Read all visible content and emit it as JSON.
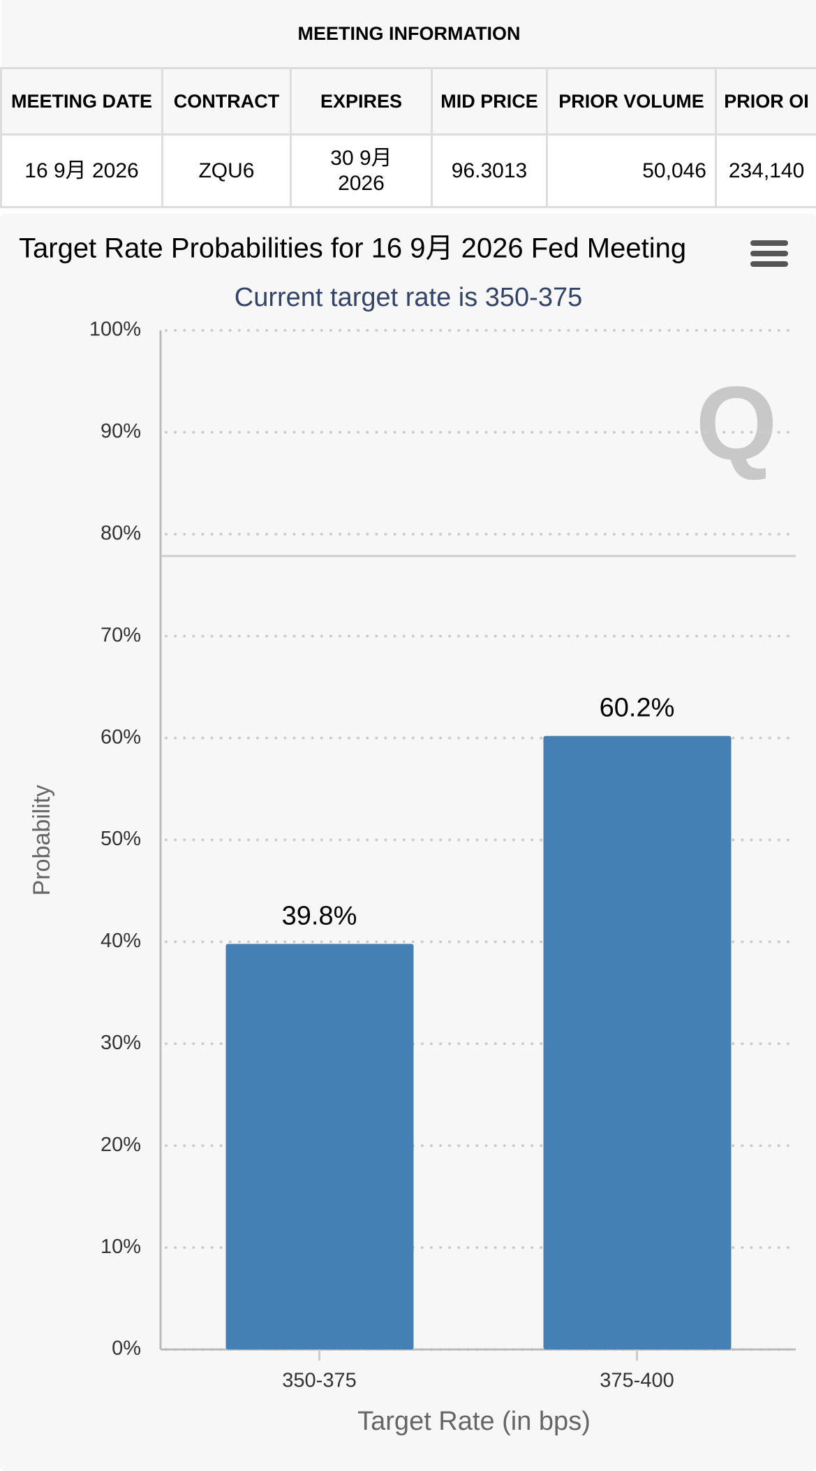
{
  "table": {
    "title": "MEETING INFORMATION",
    "headers": [
      "MEETING DATE",
      "CONTRACT",
      "EXPIRES",
      "MID PRICE",
      "PRIOR VOLUME",
      "PRIOR OI"
    ],
    "rows": [
      [
        "16 9月 2026",
        "ZQU6",
        "30 9月 2026",
        "96.3013",
        "50,046",
        "234,140"
      ]
    ]
  },
  "chart_data": {
    "type": "bar",
    "title": "Target Rate Probabilities for 16 9月 2026 Fed Meeting",
    "subtitle": "Current target rate is 350-375",
    "xlabel": "Target Rate (in bps)",
    "ylabel": "Probability",
    "categories": [
      "350-375",
      "375-400"
    ],
    "values": [
      39.8,
      60.2
    ],
    "value_labels": [
      "39.8%",
      "60.2%"
    ],
    "color": "#4580b5",
    "ylim": [
      0,
      100
    ],
    "yticks": [
      {
        "value": 0,
        "label": "0%"
      },
      {
        "value": 10,
        "label": "10%"
      },
      {
        "value": 20,
        "label": "20%"
      },
      {
        "value": 30,
        "label": "30%"
      },
      {
        "value": 40,
        "label": "40%"
      },
      {
        "value": 50,
        "label": "50%"
      },
      {
        "value": 60,
        "label": "60%"
      },
      {
        "value": 70,
        "label": "70%"
      },
      {
        "value": 80,
        "label": "80%"
      },
      {
        "value": 90,
        "label": "90%"
      },
      {
        "value": 100,
        "label": "100%"
      }
    ],
    "grid": true
  }
}
